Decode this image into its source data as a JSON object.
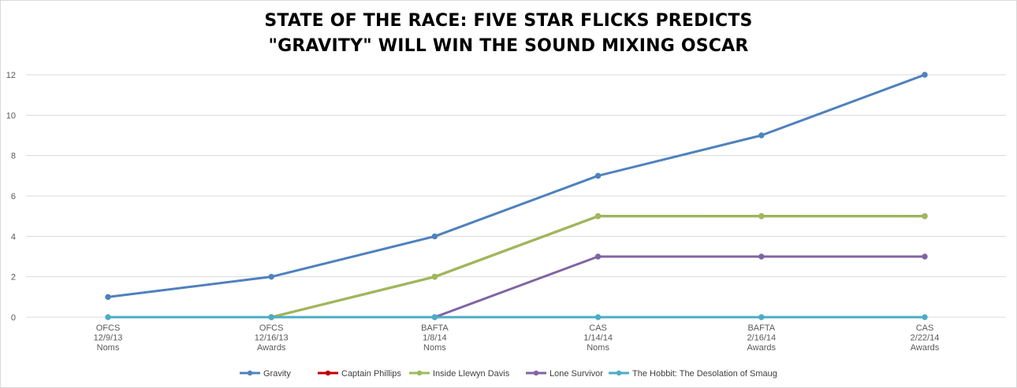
{
  "chart_data": {
    "type": "line",
    "title_lines": [
      "STATE OF THE RACE: FIVE STAR FLICKS PREDICTS",
      "\"GRAVITY\" WILL WIN THE SOUND MIXING OSCAR"
    ],
    "categories": [
      [
        "OFCS",
        "12/9/13",
        "Noms"
      ],
      [
        "OFCS",
        "12/16/13",
        "Awards"
      ],
      [
        "BAFTA",
        "1/8/14",
        "Noms"
      ],
      [
        "CAS",
        "1/14/14",
        "Noms"
      ],
      [
        "BAFTA",
        "2/16/14",
        "Awards"
      ],
      [
        "CAS",
        "2/22/14",
        "Awards"
      ]
    ],
    "ylim": [
      0,
      12
    ],
    "yticks": [
      0,
      2,
      4,
      6,
      8,
      10,
      12
    ],
    "grid": true,
    "legend_position": "bottom",
    "series": [
      {
        "name": "Gravity",
        "color": "#4f81bd",
        "values": [
          1,
          2,
          4,
          7,
          9,
          12
        ]
      },
      {
        "name": "Captain Phillips",
        "color": "#c00000",
        "values": [
          null,
          0,
          2,
          5,
          5,
          5
        ]
      },
      {
        "name": "Inside Llewyn Davis",
        "color": "#9bbb59",
        "values": [
          null,
          0,
          2,
          5,
          5,
          5
        ]
      },
      {
        "name": "Lone Survivor",
        "color": "#8064a2",
        "values": [
          null,
          null,
          0,
          3,
          3,
          3
        ]
      },
      {
        "name": "The Hobbit: The Desolation of Smaug",
        "color": "#4bacc6",
        "values": [
          0,
          0,
          0,
          0,
          0,
          0
        ]
      }
    ]
  }
}
